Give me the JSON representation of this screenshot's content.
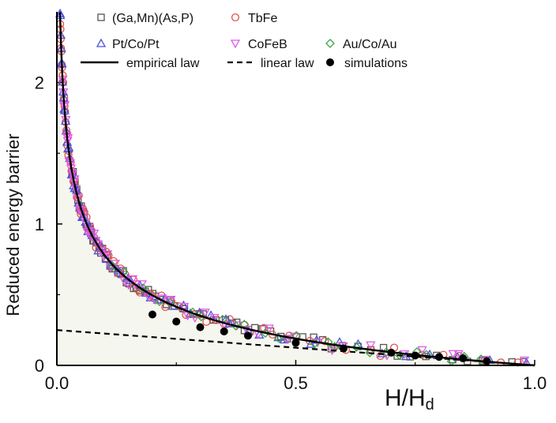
{
  "chart_data": {
    "type": "scatter",
    "xlabel_main": "H/H",
    "xlabel_sub": "d",
    "ylabel": "Reduced energy barrier",
    "xlim": [
      0.0,
      1.0
    ],
    "ylim": [
      0.0,
      2.5
    ],
    "x_ticks": [
      {
        "value": 0.0,
        "label": "0.0"
      },
      {
        "value": 0.5,
        "label": "0.5"
      },
      {
        "value": 1.0,
        "label": "1.0"
      }
    ],
    "y_ticks": [
      {
        "value": 0,
        "label": "0"
      },
      {
        "value": 1,
        "label": "1"
      },
      {
        "value": 2,
        "label": "2"
      }
    ],
    "legend": [
      {
        "label": "(Ga,Mn)(As,P)",
        "marker": "square",
        "color": "#555555"
      },
      {
        "label": "TbFe",
        "marker": "circle",
        "color": "#e8504a"
      },
      {
        "label": "Pt/Co/Pt",
        "marker": "triangle-up",
        "color": "#4a52e0"
      },
      {
        "label": "CoFeB",
        "marker": "triangle-down",
        "color": "#e05ae6"
      },
      {
        "label": "Au/Co/Au",
        "marker": "diamond",
        "color": "#3aa542"
      },
      {
        "label": "empirical law",
        "marker": "solid-line",
        "color": "#000000"
      },
      {
        "label": "linear law",
        "marker": "dashed-line",
        "color": "#000000"
      },
      {
        "label": "simulations",
        "marker": "filled-circle",
        "color": "#000000"
      }
    ],
    "empirical_law": {
      "formula": "(H/Hd)^(-1/4) - 1",
      "color": "#000000",
      "style": "solid"
    },
    "linear_law": {
      "x": [
        0.0,
        1.0
      ],
      "y": [
        0.25,
        0.0
      ],
      "color": "#000000",
      "style": "dashed"
    },
    "simulations": {
      "x": [
        0.2,
        0.25,
        0.3,
        0.35,
        0.4,
        0.5,
        0.6,
        0.7,
        0.75,
        0.8,
        0.85,
        0.9
      ],
      "y": [
        0.36,
        0.31,
        0.27,
        0.24,
        0.21,
        0.16,
        0.12,
        0.09,
        0.07,
        0.06,
        0.05,
        0.03
      ]
    },
    "experimental_series": [
      {
        "name": "(Ga,Mn)(As,P)",
        "marker": "square",
        "color": "#555555",
        "n_points": 75,
        "x_range": [
          0.03,
          1.0
        ],
        "jitter": 0.03
      },
      {
        "name": "TbFe",
        "marker": "circle",
        "color": "#e8504a",
        "n_points": 90,
        "x_range": [
          0.005,
          1.0
        ],
        "jitter": 0.035
      },
      {
        "name": "Pt/Co/Pt",
        "marker": "triangle-up",
        "color": "#4a52e0",
        "n_points": 70,
        "x_range": [
          0.004,
          1.0
        ],
        "jitter": 0.03
      },
      {
        "name": "CoFeB",
        "marker": "triangle-down",
        "color": "#e05ae6",
        "n_points": 65,
        "x_range": [
          0.012,
          1.0
        ],
        "jitter": 0.04
      },
      {
        "name": "Au/Co/Au",
        "marker": "diamond",
        "color": "#3aa542",
        "n_points": 25,
        "x_range": [
          0.1,
          0.9
        ],
        "jitter": 0.025
      }
    ],
    "shaded_region_color": "#f5f6ee"
  }
}
